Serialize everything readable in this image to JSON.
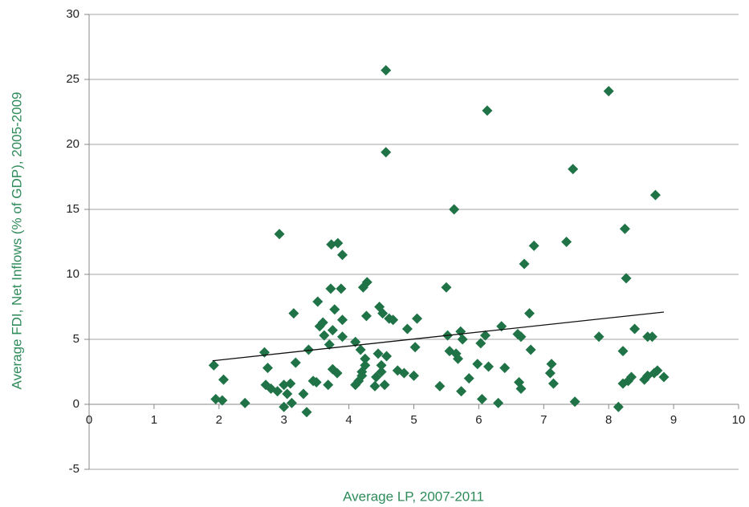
{
  "chart_data": {
    "type": "scatter",
    "x_label": "Average LP, 2007-2011",
    "y_label": "Average FDI, Net Inflows (% of GDP), 2005-2009",
    "color": "#1f7346",
    "grid": true,
    "xlim": [
      0,
      10
    ],
    "xticks": [
      0,
      1,
      2,
      3,
      4,
      5,
      6,
      7,
      8,
      9,
      10
    ],
    "ylim": [
      -5,
      30
    ],
    "yticks": [
      -5,
      0,
      5,
      10,
      15,
      20,
      25,
      30
    ],
    "x": [
      1.92,
      1.95,
      2.05,
      2.07,
      2.4,
      2.7,
      2.72,
      2.75,
      2.8,
      2.9,
      2.93,
      3.0,
      3.0,
      3.05,
      3.1,
      3.12,
      3.15,
      3.18,
      3.3,
      3.35,
      3.38,
      3.45,
      3.5,
      3.52,
      3.55,
      3.6,
      3.62,
      3.68,
      3.7,
      3.72,
      3.73,
      3.75,
      3.75,
      3.78,
      3.82,
      3.83,
      3.88,
      3.9,
      3.9,
      3.9,
      4.1,
      4.1,
      4.15,
      4.18,
      4.2,
      4.2,
      4.22,
      4.25,
      4.25,
      4.27,
      4.28,
      4.4,
      4.42,
      4.45,
      4.47,
      4.5,
      4.5,
      4.52,
      4.55,
      4.57,
      4.57,
      4.58,
      4.62,
      4.68,
      4.75,
      4.85,
      4.9,
      5.0,
      5.02,
      5.05,
      5.4,
      5.5,
      5.52,
      5.55,
      5.62,
      5.65,
      5.68,
      5.72,
      5.73,
      5.75,
      5.85,
      5.98,
      6.03,
      6.05,
      6.1,
      6.13,
      6.15,
      6.3,
      6.35,
      6.4,
      6.6,
      6.62,
      6.65,
      6.65,
      6.7,
      6.78,
      6.8,
      6.85,
      7.1,
      7.12,
      7.15,
      7.35,
      7.45,
      7.48,
      7.85,
      8.0,
      8.15,
      8.22,
      8.22,
      8.25,
      8.27,
      8.3,
      8.35,
      8.4,
      8.55,
      8.6,
      8.6,
      8.67,
      8.7,
      8.72,
      8.75,
      8.85
    ],
    "values": [
      3.0,
      0.4,
      0.3,
      1.9,
      0.1,
      4.0,
      1.5,
      2.8,
      1.2,
      1.0,
      13.1,
      1.5,
      -0.2,
      0.8,
      1.6,
      0.1,
      7.0,
      3.2,
      0.8,
      -0.6,
      4.2,
      1.8,
      1.7,
      7.9,
      6.0,
      6.3,
      5.3,
      1.5,
      4.6,
      8.9,
      12.3,
      5.7,
      2.7,
      7.3,
      2.4,
      12.4,
      8.9,
      11.5,
      6.5,
      5.2,
      4.8,
      1.5,
      1.8,
      4.2,
      2.2,
      2.5,
      9.0,
      3.0,
      3.5,
      6.8,
      9.4,
      1.4,
      2.1,
      3.9,
      7.5,
      2.5,
      3.0,
      7.0,
      1.5,
      25.7,
      19.4,
      3.7,
      6.6,
      6.5,
      2.6,
      2.4,
      5.8,
      2.2,
      4.4,
      6.6,
      1.4,
      9.0,
      5.3,
      4.1,
      15.0,
      3.9,
      3.5,
      5.6,
      1.0,
      5.0,
      2.0,
      3.1,
      4.7,
      0.4,
      5.3,
      22.6,
      2.9,
      0.1,
      6.0,
      2.8,
      5.4,
      1.7,
      1.2,
      5.2,
      10.8,
      7.0,
      4.2,
      12.2,
      2.4,
      3.1,
      1.6,
      12.5,
      18.1,
      0.2,
      5.2,
      24.1,
      -0.2,
      1.6,
      4.1,
      13.5,
      9.7,
      1.8,
      2.1,
      5.8,
      1.9,
      2.2,
      5.2,
      5.2,
      2.4,
      16.1,
      2.6,
      2.1
    ],
    "trendline": {
      "x": [
        1.9,
        8.85
      ],
      "y": [
        3.35,
        7.1
      ],
      "color": "#111111"
    }
  }
}
